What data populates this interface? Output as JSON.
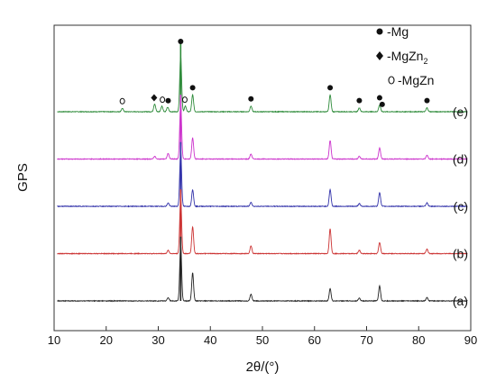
{
  "chart_data": {
    "type": "line",
    "xlabel": "2θ/(°)",
    "ylabel": "GPS",
    "xlim": [
      10,
      90
    ],
    "x_ticks": [
      "10",
      "20",
      "30",
      "40",
      "50",
      "60",
      "70",
      "80",
      "90"
    ],
    "grid": false,
    "legend_position": "top-right",
    "series": [
      {
        "name": "(e)",
        "color": "#2e8b3a",
        "baseline": 4,
        "peaks": [
          [
            23.1,
            0.06
          ],
          [
            29.3,
            0.14
          ],
          [
            30.7,
            0.1
          ],
          [
            31.8,
            0.08
          ],
          [
            34.3,
            1.0
          ],
          [
            35.2,
            0.1
          ],
          [
            36.6,
            0.3
          ],
          [
            47.8,
            0.1
          ],
          [
            63.0,
            0.3
          ],
          [
            68.6,
            0.07
          ],
          [
            72.5,
            0.12
          ],
          [
            81.6,
            0.07
          ]
        ]
      },
      {
        "name": "(d)",
        "color": "#cc33cc",
        "baseline": 3,
        "peaks": [
          [
            29.3,
            0.05
          ],
          [
            31.9,
            0.1
          ],
          [
            34.3,
            1.0
          ],
          [
            36.6,
            0.38
          ],
          [
            47.8,
            0.09
          ],
          [
            63.0,
            0.33
          ],
          [
            68.6,
            0.05
          ],
          [
            72.5,
            0.2
          ],
          [
            81.6,
            0.07
          ]
        ]
      },
      {
        "name": "(c)",
        "color": "#3333aa",
        "baseline": 2,
        "peaks": [
          [
            31.9,
            0.06
          ],
          [
            34.3,
            1.0
          ],
          [
            36.6,
            0.3
          ],
          [
            47.8,
            0.07
          ],
          [
            63.0,
            0.3
          ],
          [
            68.6,
            0.05
          ],
          [
            72.5,
            0.25
          ],
          [
            81.6,
            0.06
          ]
        ]
      },
      {
        "name": "(b)",
        "color": "#cc3333",
        "baseline": 1,
        "peaks": [
          [
            31.9,
            0.06
          ],
          [
            34.3,
            1.0
          ],
          [
            36.6,
            0.48
          ],
          [
            47.8,
            0.14
          ],
          [
            63.0,
            0.44
          ],
          [
            68.6,
            0.06
          ],
          [
            72.5,
            0.2
          ],
          [
            81.6,
            0.08
          ]
        ]
      },
      {
        "name": "(a)",
        "color": "#222222",
        "baseline": 0,
        "peaks": [
          [
            31.9,
            0.06
          ],
          [
            34.3,
            1.0
          ],
          [
            36.6,
            0.5
          ],
          [
            47.8,
            0.12
          ],
          [
            63.0,
            0.22
          ],
          [
            68.6,
            0.05
          ],
          [
            72.5,
            0.27
          ],
          [
            81.6,
            0.06
          ]
        ]
      }
    ],
    "phase_markers": [
      {
        "symbol": "circle",
        "x": 34.3
      },
      {
        "symbol": "circle",
        "x": 36.6
      },
      {
        "symbol": "circle",
        "x": 47.8
      },
      {
        "symbol": "circle",
        "x": 63.0
      },
      {
        "symbol": "circle",
        "x": 68.6
      },
      {
        "symbol": "circle",
        "x": 72.5
      },
      {
        "symbol": "circle",
        "x": 73.0
      },
      {
        "symbol": "circle",
        "x": 81.6
      },
      {
        "symbol": "circle",
        "x": 31.9
      },
      {
        "symbol": "diamond",
        "x": 29.2
      },
      {
        "symbol": "open-circle",
        "x": 23.1
      },
      {
        "symbol": "open-circle",
        "x": 30.8
      },
      {
        "symbol": "open-circle",
        "x": 35.1
      }
    ],
    "legend": [
      {
        "symbol": "circle",
        "text": "-Mg",
        "sub": ""
      },
      {
        "symbol": "diamond",
        "text": "-MgZn",
        "sub": "2"
      },
      {
        "symbol": "open-circle",
        "text": "-MgZn",
        "sub": ""
      }
    ]
  }
}
